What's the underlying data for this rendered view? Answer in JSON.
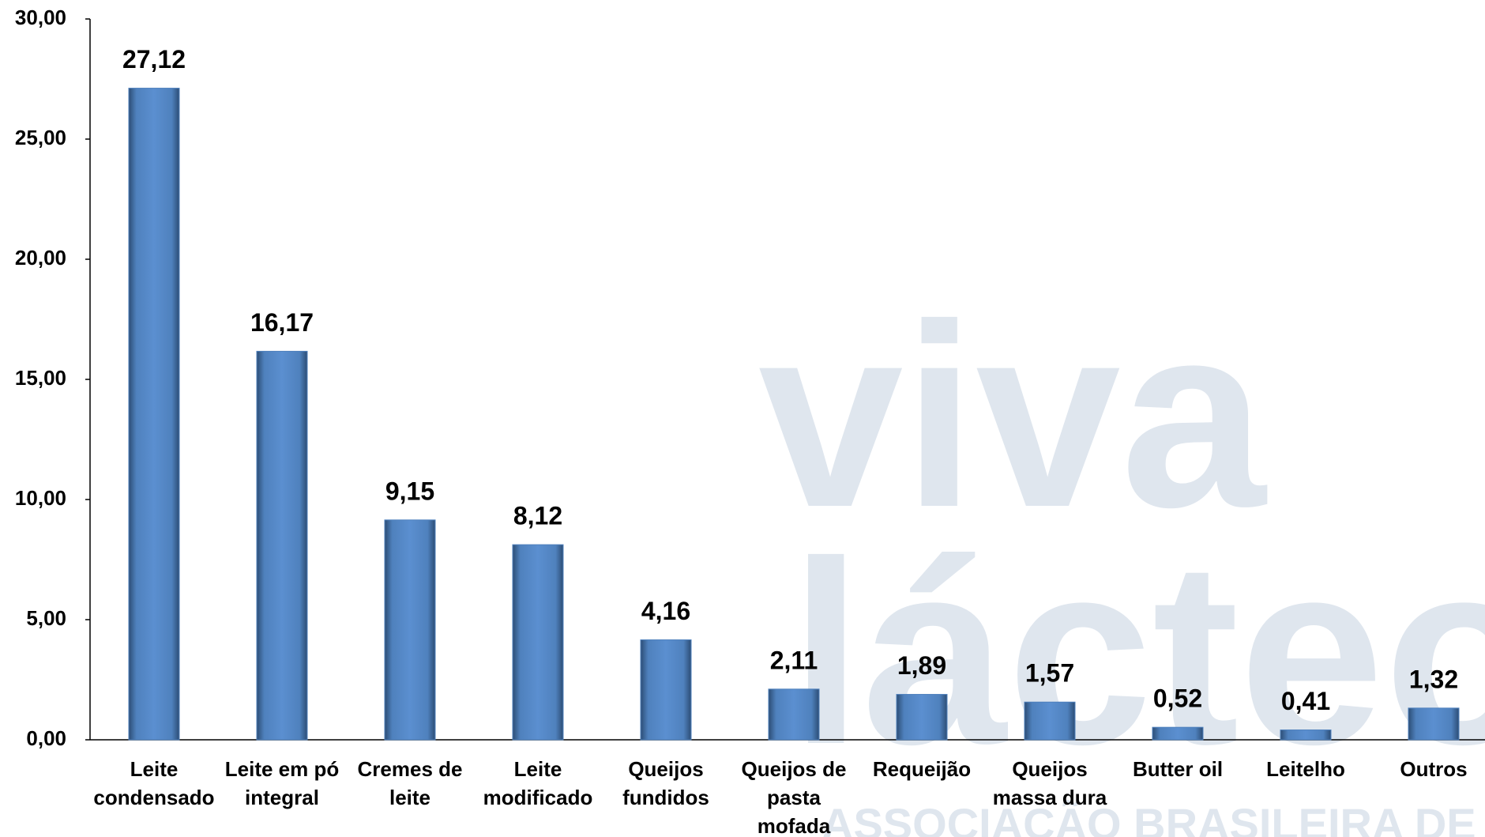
{
  "chart_data": {
    "type": "bar",
    "watermark": [
      "viva",
      "lácteos",
      "ASSOCIAÇÃO BRASILEIRA DE LATICÍNIOS"
    ],
    "categories": [
      [
        "Leite",
        "condensado"
      ],
      [
        "Leite em pó",
        "integral"
      ],
      [
        "Cremes de",
        "leite"
      ],
      [
        "Leite",
        "modificado"
      ],
      [
        "Queijos",
        "fundidos"
      ],
      [
        "Queijos de",
        "pasta",
        "mofada"
      ],
      [
        "Requeijão"
      ],
      [
        "Queijos",
        "massa dura"
      ],
      [
        "Butter oil"
      ],
      [
        "Leitelho"
      ],
      [
        "Outros"
      ]
    ],
    "values": [
      27.12,
      16.17,
      9.15,
      8.12,
      4.16,
      2.11,
      1.89,
      1.57,
      0.52,
      0.41,
      1.32
    ],
    "value_labels": [
      "27,12",
      "16,17",
      "9,15",
      "8,12",
      "4,16",
      "2,11",
      "1,89",
      "1,57",
      "0,52",
      "0,41",
      "1,32"
    ],
    "color": "#4f81bd",
    "ylim": [
      0,
      30
    ],
    "yticks": [
      {
        "value": 0,
        "label": "0,00"
      },
      {
        "value": 5,
        "label": "5,00"
      },
      {
        "value": 10,
        "label": "10,00"
      },
      {
        "value": 15,
        "label": "15,00"
      },
      {
        "value": 20,
        "label": "20,00"
      },
      {
        "value": 25,
        "label": "25,00"
      },
      {
        "value": 30,
        "label": "30,00"
      }
    ],
    "grid": false
  }
}
